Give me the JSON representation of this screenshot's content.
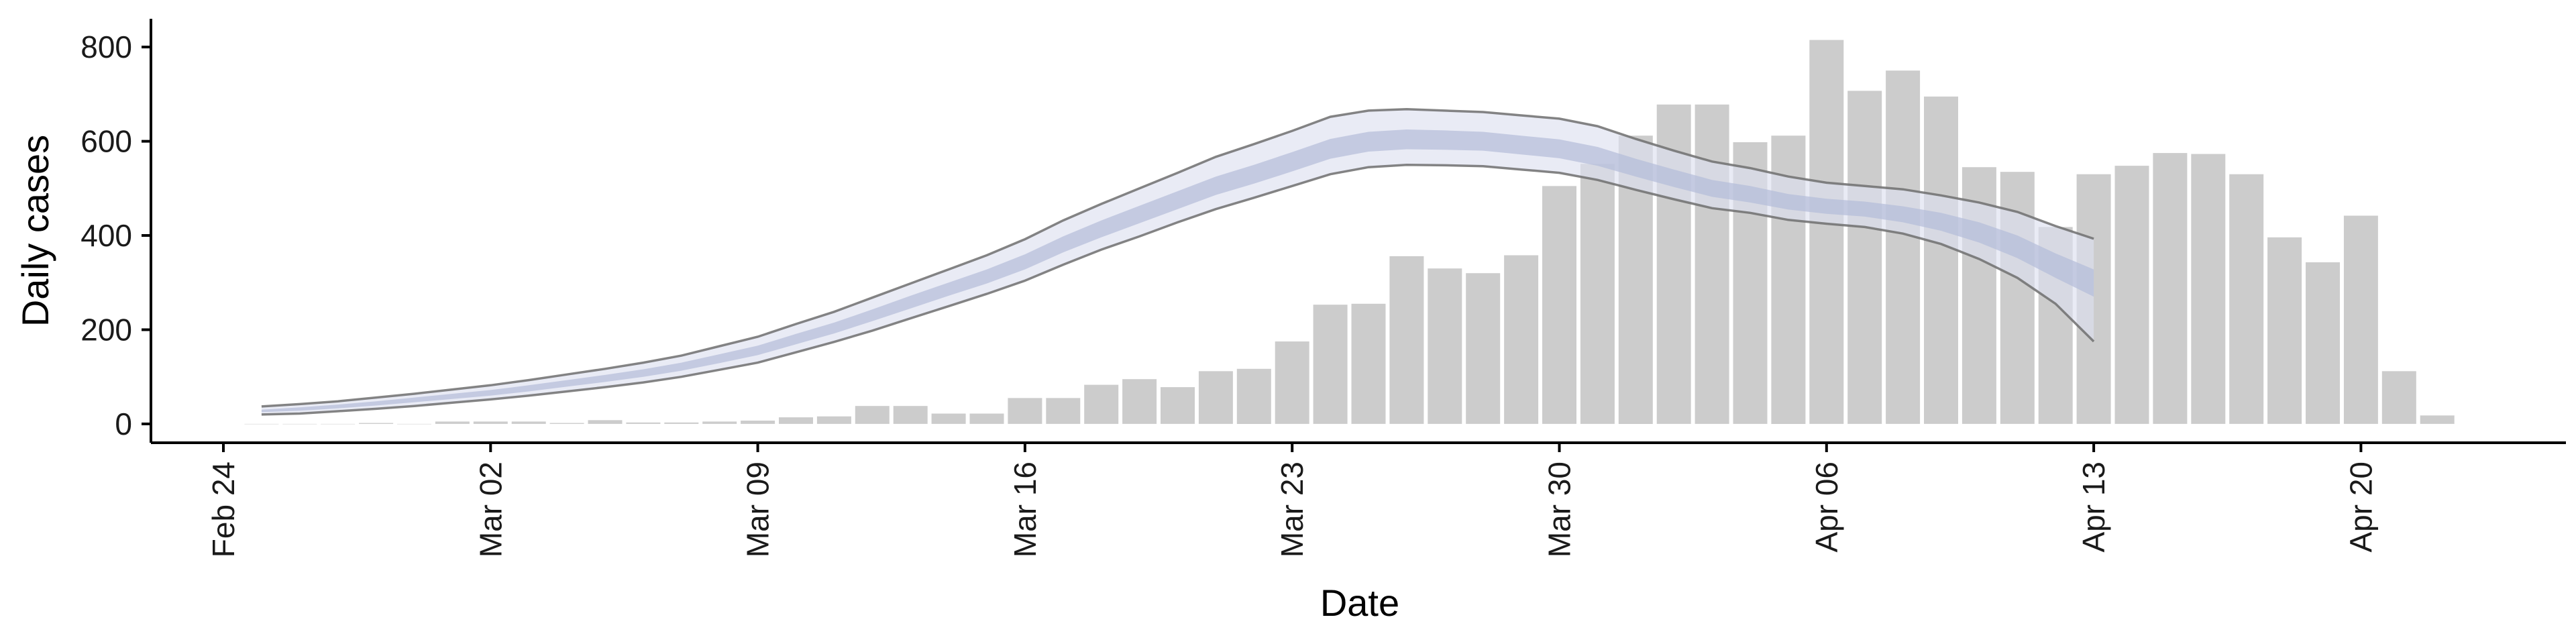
{
  "chart_data": {
    "type": "bar",
    "xlabel": "Date",
    "ylabel": "Daily cases",
    "ylim": [
      -40,
      860
    ],
    "yticks": [
      0,
      200,
      400,
      600,
      800
    ],
    "grid": false,
    "legend": "none",
    "colors": {
      "bars": "#cccccc",
      "band_outer": "#dde1ef",
      "band_inner": "#b4bcd8",
      "interval_lines": "#6e6e6e"
    },
    "xticks": [
      {
        "date": "2020-02-24",
        "label": "Feb 24"
      },
      {
        "date": "2020-03-02",
        "label": "Mar 02"
      },
      {
        "date": "2020-03-09",
        "label": "Mar 09"
      },
      {
        "date": "2020-03-16",
        "label": "Mar 16"
      },
      {
        "date": "2020-03-23",
        "label": "Mar 23"
      },
      {
        "date": "2020-03-30",
        "label": "Mar 30"
      },
      {
        "date": "2020-04-06",
        "label": "Apr 06"
      },
      {
        "date": "2020-04-13",
        "label": "Apr 13"
      },
      {
        "date": "2020-04-20",
        "label": "Apr 20"
      }
    ],
    "bars": {
      "dates": [
        "2020-02-25",
        "2020-02-26",
        "2020-02-27",
        "2020-02-28",
        "2020-02-29",
        "2020-03-01",
        "2020-03-02",
        "2020-03-03",
        "2020-03-04",
        "2020-03-05",
        "2020-03-06",
        "2020-03-07",
        "2020-03-08",
        "2020-03-09",
        "2020-03-10",
        "2020-03-11",
        "2020-03-12",
        "2020-03-13",
        "2020-03-14",
        "2020-03-15",
        "2020-03-16",
        "2020-03-17",
        "2020-03-18",
        "2020-03-19",
        "2020-03-20",
        "2020-03-21",
        "2020-03-22",
        "2020-03-23",
        "2020-03-24",
        "2020-03-25",
        "2020-03-26",
        "2020-03-27",
        "2020-03-28",
        "2020-03-29",
        "2020-03-30",
        "2020-03-31",
        "2020-04-01",
        "2020-04-02",
        "2020-04-03",
        "2020-04-04",
        "2020-04-05",
        "2020-04-06",
        "2020-04-07",
        "2020-04-08",
        "2020-04-09",
        "2020-04-10",
        "2020-04-11",
        "2020-04-12",
        "2020-04-13",
        "2020-04-14",
        "2020-04-15",
        "2020-04-16",
        "2020-04-17",
        "2020-04-18",
        "2020-04-19",
        "2020-04-20",
        "2020-04-21",
        "2020-04-22"
      ],
      "values": [
        0,
        0,
        0,
        2,
        0,
        5,
        5,
        5,
        2,
        8,
        3,
        3,
        5,
        7,
        14,
        16,
        38,
        38,
        22,
        22,
        55,
        55,
        83,
        95,
        78,
        112,
        117,
        175,
        253,
        255,
        356,
        330,
        320,
        358,
        505,
        552,
        612,
        678,
        678,
        598,
        612,
        815,
        707,
        750,
        695,
        545,
        535,
        418,
        530,
        548,
        575,
        573,
        530,
        396,
        343,
        442,
        112,
        18
      ]
    },
    "nowcast": {
      "dates": [
        "2020-02-25",
        "2020-02-26",
        "2020-02-27",
        "2020-02-28",
        "2020-02-29",
        "2020-03-01",
        "2020-03-02",
        "2020-03-03",
        "2020-03-04",
        "2020-03-05",
        "2020-03-06",
        "2020-03-07",
        "2020-03-08",
        "2020-03-09",
        "2020-03-10",
        "2020-03-11",
        "2020-03-12",
        "2020-03-13",
        "2020-03-14",
        "2020-03-15",
        "2020-03-16",
        "2020-03-17",
        "2020-03-18",
        "2020-03-19",
        "2020-03-20",
        "2020-03-21",
        "2020-03-22",
        "2020-03-23",
        "2020-03-24",
        "2020-03-25",
        "2020-03-26",
        "2020-03-27",
        "2020-03-28",
        "2020-03-29",
        "2020-03-30",
        "2020-03-31",
        "2020-04-01",
        "2020-04-02",
        "2020-04-03",
        "2020-04-04",
        "2020-04-05",
        "2020-04-06",
        "2020-04-07",
        "2020-04-08",
        "2020-04-09",
        "2020-04-10",
        "2020-04-11",
        "2020-04-12",
        "2020-04-13"
      ],
      "outer_upper": [
        37,
        42,
        48,
        56,
        64,
        73,
        82,
        93,
        105,
        117,
        130,
        145,
        165,
        185,
        212,
        238,
        268,
        298,
        328,
        358,
        392,
        432,
        467,
        500,
        533,
        567,
        594,
        622,
        652,
        665,
        668,
        665,
        662,
        655,
        648,
        632,
        605,
        580,
        557,
        543,
        525,
        512,
        505,
        498,
        485,
        470,
        450,
        420,
        393
      ],
      "inner_upper": [
        30,
        35,
        41,
        48,
        56,
        64,
        72,
        82,
        93,
        104,
        116,
        130,
        148,
        166,
        191,
        215,
        243,
        272,
        300,
        328,
        360,
        398,
        432,
        463,
        494,
        525,
        550,
        577,
        605,
        620,
        625,
        623,
        620,
        612,
        604,
        588,
        563,
        540,
        518,
        505,
        488,
        478,
        472,
        462,
        448,
        428,
        400,
        362,
        328
      ],
      "inner_lower": [
        25,
        28,
        33,
        39,
        46,
        53,
        60,
        69,
        79,
        89,
        100,
        113,
        129,
        146,
        169,
        192,
        218,
        245,
        272,
        298,
        328,
        364,
        396,
        426,
        456,
        486,
        510,
        536,
        563,
        578,
        583,
        582,
        580,
        572,
        564,
        548,
        525,
        503,
        482,
        470,
        455,
        446,
        440,
        428,
        410,
        385,
        352,
        310,
        270
      ],
      "outer_lower": [
        20,
        22,
        27,
        32,
        38,
        45,
        52,
        60,
        69,
        78,
        88,
        100,
        115,
        130,
        152,
        174,
        198,
        224,
        250,
        276,
        304,
        338,
        370,
        398,
        428,
        456,
        480,
        505,
        530,
        545,
        550,
        549,
        547,
        540,
        533,
        518,
        497,
        477,
        458,
        448,
        433,
        425,
        418,
        404,
        382,
        350,
        310,
        255,
        175
      ]
    }
  }
}
